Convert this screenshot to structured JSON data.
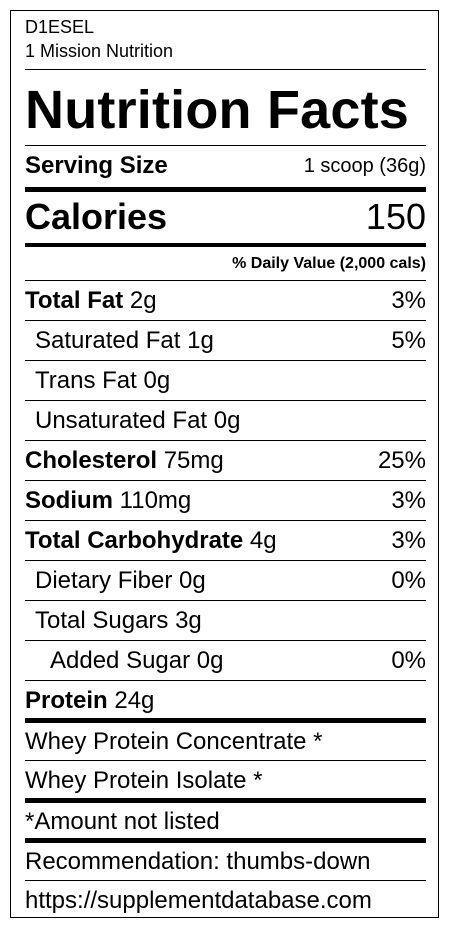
{
  "brand": {
    "product": "D1ESEL",
    "company": "1 Mission Nutrition"
  },
  "title": "Nutrition Facts",
  "serving": {
    "label": "Serving Size",
    "value": "1 scoop (36g)"
  },
  "calories": {
    "label": "Calories",
    "value": "150"
  },
  "daily_value_header": "% Daily Value (2,000 cals)",
  "nutrients": [
    {
      "name": "Total Fat",
      "amount": "2g",
      "dv": "3%"
    },
    {
      "name": "Saturated Fat",
      "amount": "1g",
      "dv": "5%"
    },
    {
      "name": "Trans Fat",
      "amount": "0g",
      "dv": ""
    },
    {
      "name": "Unsaturated Fat",
      "amount": "0g",
      "dv": ""
    },
    {
      "name": "Cholesterol",
      "amount": "75mg",
      "dv": "25%"
    },
    {
      "name": "Sodium",
      "amount": "110mg",
      "dv": "3%"
    },
    {
      "name": "Total Carbohydrate",
      "amount": "4g",
      "dv": "3%"
    },
    {
      "name": "Dietary Fiber",
      "amount": "0g",
      "dv": "0%"
    },
    {
      "name": "Total Sugars",
      "amount": "3g",
      "dv": ""
    },
    {
      "name": "Added Sugar",
      "amount": "0g",
      "dv": "0%"
    },
    {
      "name": "Protein",
      "amount": "24g",
      "dv": ""
    }
  ],
  "ingredients": [
    "Whey Protein Concentrate *",
    "Whey Protein Isolate *"
  ],
  "footnote": "*Amount not listed",
  "recommendation": "Recommendation: thumbs-down",
  "source_url": "https://supplementdatabase.com"
}
